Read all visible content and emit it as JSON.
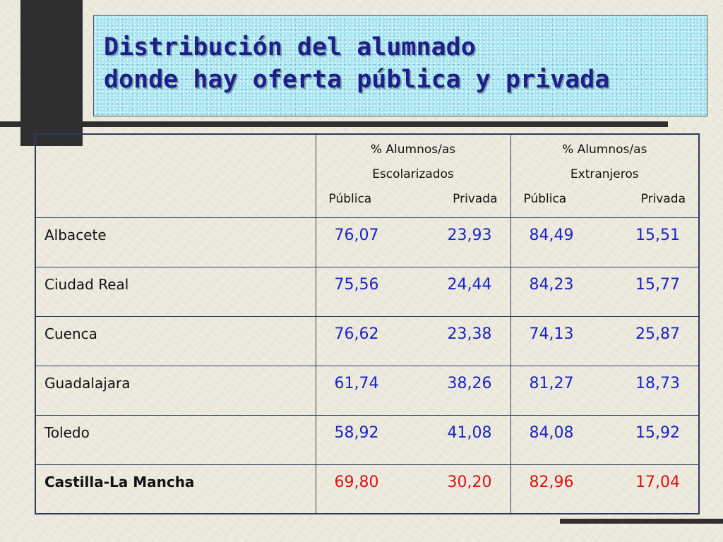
{
  "title": {
    "line1": "Distribución del alumnado",
    "line2": "donde hay oferta pública y privada"
  },
  "table": {
    "groups": [
      {
        "line1": "% Alumnos/as",
        "line2": "Escolarizados",
        "sub_a": "Pública",
        "sub_b": "Privada"
      },
      {
        "line1": "% Alumnos/as",
        "line2": "Extranjeros",
        "sub_a": "Pública",
        "sub_b": "Privada"
      }
    ],
    "rows": [
      {
        "label": "Albacete",
        "esc_pub": "76,07",
        "esc_priv": "23,93",
        "ext_pub": "84,49",
        "ext_priv": "15,51"
      },
      {
        "label": "Ciudad Real",
        "esc_pub": "75,56",
        "esc_priv": "24,44",
        "ext_pub": "84,23",
        "ext_priv": "15,77"
      },
      {
        "label": "Cuenca",
        "esc_pub": "76,62",
        "esc_priv": "23,38",
        "ext_pub": "74,13",
        "ext_priv": "25,87"
      },
      {
        "label": "Guadalajara",
        "esc_pub": "61,74",
        "esc_priv": "38,26",
        "ext_pub": "81,27",
        "ext_priv": "18,73"
      },
      {
        "label": "Toledo",
        "esc_pub": "58,92",
        "esc_priv": "41,08",
        "ext_pub": "84,08",
        "ext_priv": "15,92"
      },
      {
        "label": "Castilla-La Mancha",
        "esc_pub": "69,80",
        "esc_priv": "30,20",
        "ext_pub": "82,96",
        "ext_priv": "17,04"
      }
    ]
  },
  "colors": {
    "title": "#1f1f8c",
    "values": "#1a24c8",
    "total_values": "#e01010",
    "title_box": "#a9e6f2"
  }
}
